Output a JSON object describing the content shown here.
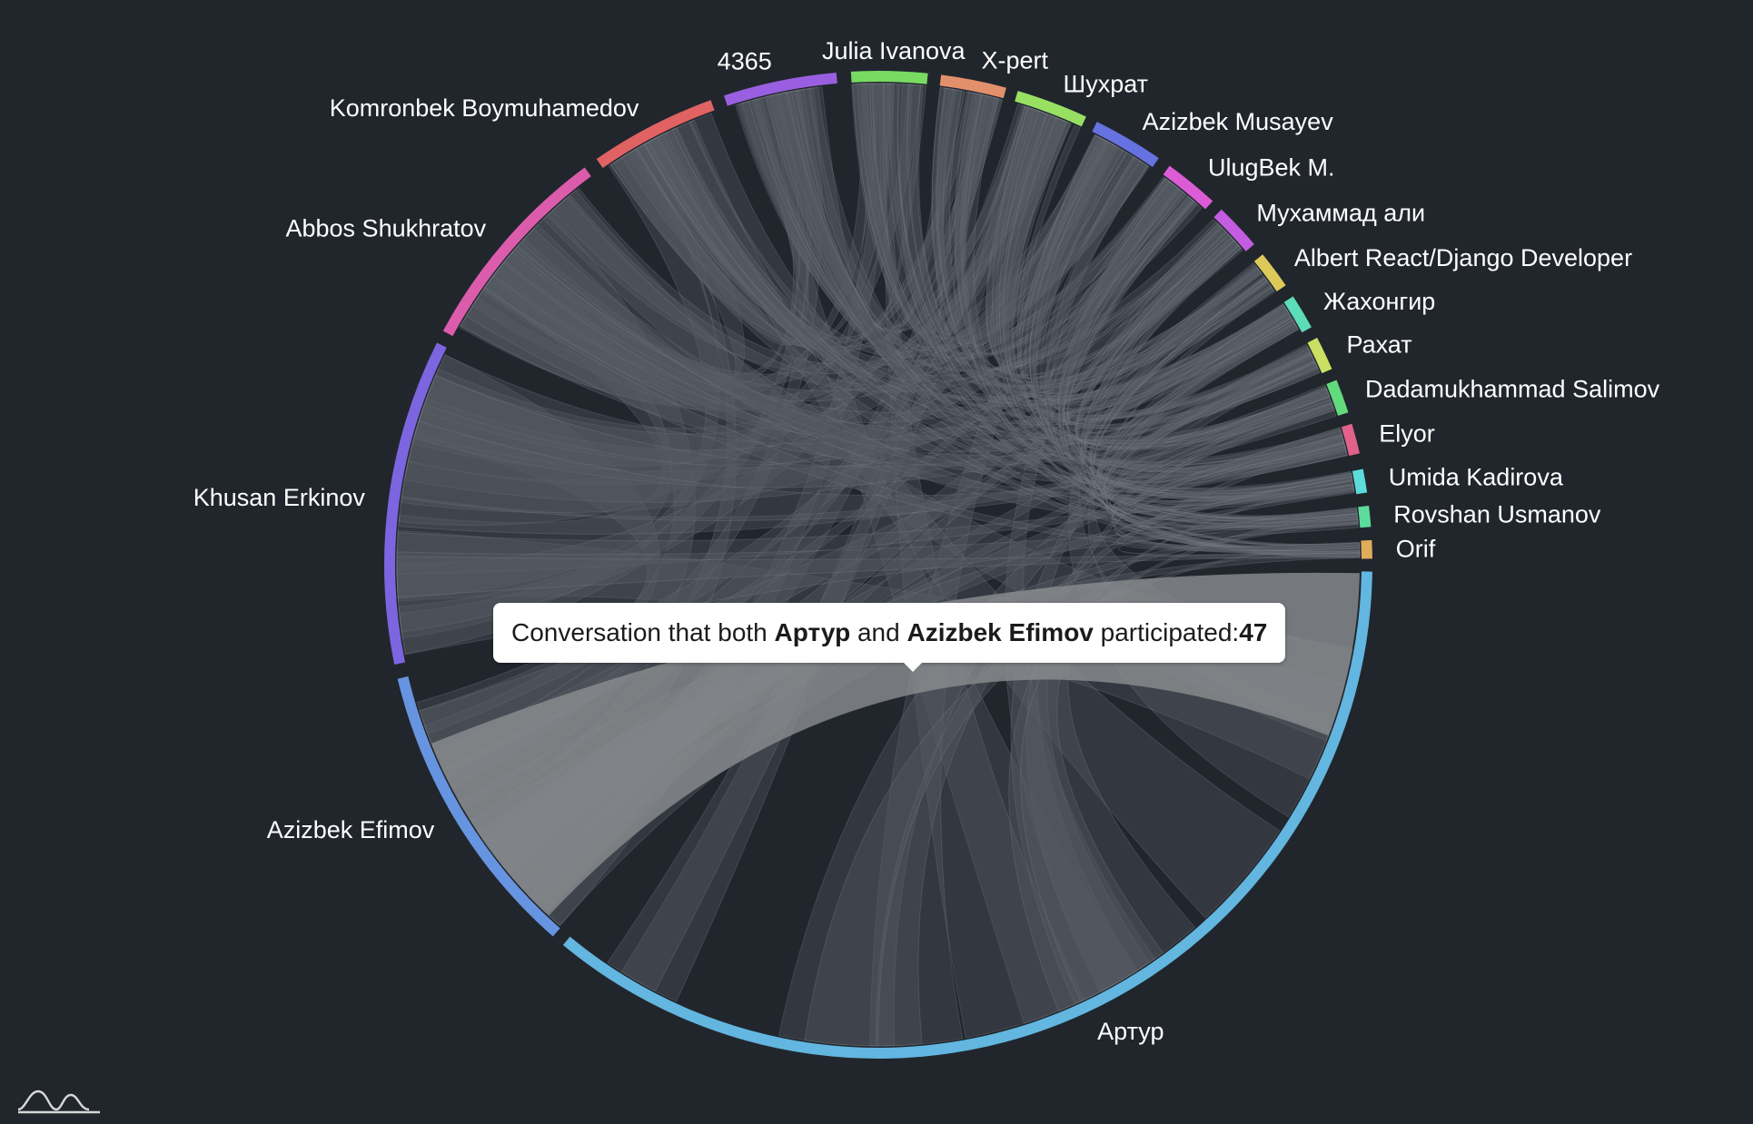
{
  "chart_data": {
    "type": "chord",
    "groups": [
      {
        "name": "Артур",
        "color": "#62b6e0"
      },
      {
        "name": "Azizbek Efimov",
        "color": "#6794e0"
      },
      {
        "name": "Khusan Erkinov",
        "color": "#7d65e0"
      },
      {
        "name": "Abbos Shukhratov",
        "color": "#dc5cac"
      },
      {
        "name": "Komronbek Boymuhamedov",
        "color": "#e06262"
      },
      {
        "name": "4365",
        "color": "#9a5fe0"
      },
      {
        "name": "Julia Ivanova",
        "color": "#79db62"
      },
      {
        "name": "X-pert",
        "color": "#e28f6b"
      },
      {
        "name": "Шухрат",
        "color": "#98e062"
      },
      {
        "name": "Azizbek Musayev",
        "color": "#6672e0"
      },
      {
        "name": "UlugBek M.",
        "color": "#dc5cd6"
      },
      {
        "name": "Мухаммад али",
        "color": "#c25ce0"
      },
      {
        "name": "Albert React/Django Developer",
        "color": "#dcc95a"
      },
      {
        "name": "Жахонгир",
        "color": "#5cdcb8"
      },
      {
        "name": "Рахат",
        "color": "#cbe062"
      },
      {
        "name": "Dadamukhammad Salimov",
        "color": "#62db7c"
      },
      {
        "name": "Elyor",
        "color": "#e0628a"
      },
      {
        "name": "Umida Kadirova",
        "color": "#5cdcdc"
      },
      {
        "name": "Rovshan Usmanov",
        "color": "#5cdc9c"
      },
      {
        "name": "Orif",
        "color": "#e0ad5c"
      }
    ],
    "highlighted_link": {
      "source": "Артур",
      "target": "Azizbek Efimov",
      "value": 47
    }
  },
  "tooltip": {
    "prefix": "Conversation that both ",
    "source": "Артур",
    "middle": " and ",
    "target": "Azizbek Efimov",
    "suffix": " participated: ",
    "value": "47"
  }
}
